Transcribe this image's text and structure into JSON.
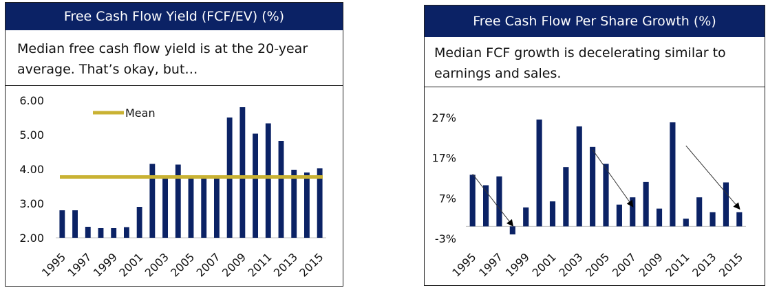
{
  "left_panel": {
    "title": "Free Cash Flow Yield (FCF/EV) (%)",
    "subtitle": "Median free cash flow yield is at the 20-year average. That’s okay, but…"
  },
  "right_panel": {
    "title": "Free Cash Flow Per Share Growth (%)",
    "subtitle": "Median FCF growth is decelerating similar to earnings and sales."
  },
  "colors": {
    "header_bg": "#0b2265",
    "bar": "#0b2265",
    "mean_line": "#c9b233",
    "axis": "#bfbfbf"
  },
  "chart_data": [
    {
      "type": "bar",
      "categories": [
        "1995",
        "1996",
        "1997",
        "1998",
        "1999",
        "2000",
        "2001",
        "2002",
        "2003",
        "2004",
        "2005",
        "2006",
        "2007",
        "2008",
        "2009",
        "2010",
        "2011",
        "2012",
        "2013",
        "2014",
        "2015"
      ],
      "tick_labels": [
        "1995",
        "1997",
        "1999",
        "2001",
        "2003",
        "2005",
        "2007",
        "2009",
        "2011",
        "2013",
        "2015"
      ],
      "series": [
        {
          "values": [
            2.8,
            2.8,
            2.32,
            2.28,
            2.28,
            2.31,
            2.9,
            4.15,
            3.75,
            4.13,
            3.75,
            3.75,
            3.75,
            5.5,
            5.8,
            5.03,
            5.33,
            4.82,
            3.98,
            3.9,
            4.02
          ]
        }
      ],
      "mean": {
        "label": "Mean",
        "value": 3.77
      },
      "ylim": [
        2.0,
        6.0
      ],
      "yticks": [
        2.0,
        3.0,
        4.0,
        5.0,
        6.0
      ],
      "ytick_labels": [
        "2.00",
        "3.00",
        "4.00",
        "5.00",
        "6.00"
      ],
      "legend": "top-left",
      "grid": false
    },
    {
      "type": "bar",
      "categories": [
        "1995",
        "1996",
        "1997",
        "1998",
        "1999",
        "2000",
        "2001",
        "2002",
        "2003",
        "2004",
        "2005",
        "2006",
        "2007",
        "2008",
        "2009",
        "2010",
        "2011",
        "2012",
        "2013",
        "2014",
        "2015"
      ],
      "tick_labels": [
        "1995",
        "1997",
        "1999",
        "2001",
        "2003",
        "2005",
        "2007",
        "2009",
        "2011",
        "2013",
        "2015"
      ],
      "series": [
        {
          "values": [
            12.8,
            10.2,
            12.4,
            -2.0,
            4.7,
            26.5,
            6.2,
            14.7,
            24.8,
            19.7,
            15.5,
            5.4,
            7.2,
            11.0,
            4.4,
            25.8,
            1.9,
            7.2,
            3.5,
            10.9,
            3.5
          ]
        }
      ],
      "ylim": [
        -3,
        27
      ],
      "yticks": [
        -3,
        7,
        17,
        27
      ],
      "ytick_labels": [
        "-3%",
        "7%",
        "17%",
        "27%"
      ],
      "trend_arrows": [
        {
          "from": [
            1995,
            13.0
          ],
          "to": [
            1998,
            0.2
          ]
        },
        {
          "from": [
            2004,
            19.0
          ],
          "to": [
            2007,
            5.0
          ]
        },
        {
          "from": [
            2011,
            20.0
          ],
          "to": [
            2015,
            4.4
          ]
        }
      ],
      "grid": false
    }
  ]
}
